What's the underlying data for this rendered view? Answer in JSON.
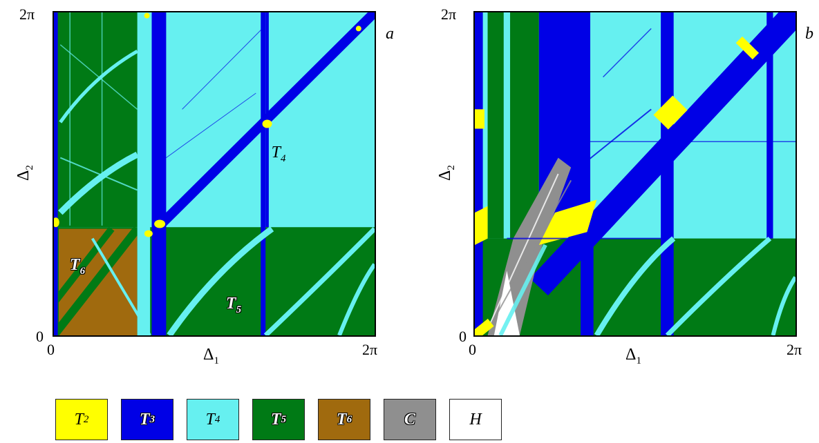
{
  "colors": {
    "T2": "#ffff00",
    "T3": "#0000e6",
    "T4": "#66f0f0",
    "T5": "#007a15",
    "T6": "#a06a0e",
    "C": "#8f8f8f",
    "H": "#ffffff"
  },
  "chart_data": [
    {
      "type": "heatmap",
      "panel": "a",
      "xlabel": "Δ",
      "xlabel_sub": "1",
      "ylabel": "Δ",
      "ylabel_sub": "2",
      "x_ticks": [
        "0",
        "2π"
      ],
      "y_ticks": [
        "0",
        "2π"
      ],
      "xlim": [
        0,
        6.283
      ],
      "ylim": [
        0,
        6.283
      ],
      "region_labels": [
        {
          "name": "T",
          "sub": "4",
          "x": 4.45,
          "y": 3.54,
          "outlined": false
        },
        {
          "name": "T",
          "sub": "6",
          "x": 0.5,
          "y": 1.36,
          "outlined": true
        },
        {
          "name": "T",
          "sub": "5",
          "x": 3.56,
          "y": 0.61,
          "outlined": true
        }
      ]
    },
    {
      "type": "heatmap",
      "panel": "b",
      "xlabel": "Δ",
      "xlabel_sub": "1",
      "ylabel": "Δ",
      "ylabel_sub": "2",
      "x_ticks": [
        "0",
        "2π"
      ],
      "y_ticks": [
        "0",
        "2π"
      ],
      "xlim": [
        0,
        6.283
      ],
      "ylim": [
        0,
        6.283
      ],
      "region_labels": []
    }
  ],
  "legend": [
    {
      "key": "T2",
      "label": "T",
      "sub": "2",
      "outlined": false
    },
    {
      "key": "T3",
      "label": "T",
      "sub": "3",
      "outlined": true
    },
    {
      "key": "T4",
      "label": "T",
      "sub": "4",
      "outlined": false
    },
    {
      "key": "T5",
      "label": "T",
      "sub": "5",
      "outlined": true
    },
    {
      "key": "T6",
      "label": "T",
      "sub": "6",
      "outlined": true
    },
    {
      "key": "C",
      "label": "C",
      "sub": "",
      "outlined": true
    },
    {
      "key": "H",
      "label": "H",
      "sub": "",
      "outlined": false
    }
  ]
}
